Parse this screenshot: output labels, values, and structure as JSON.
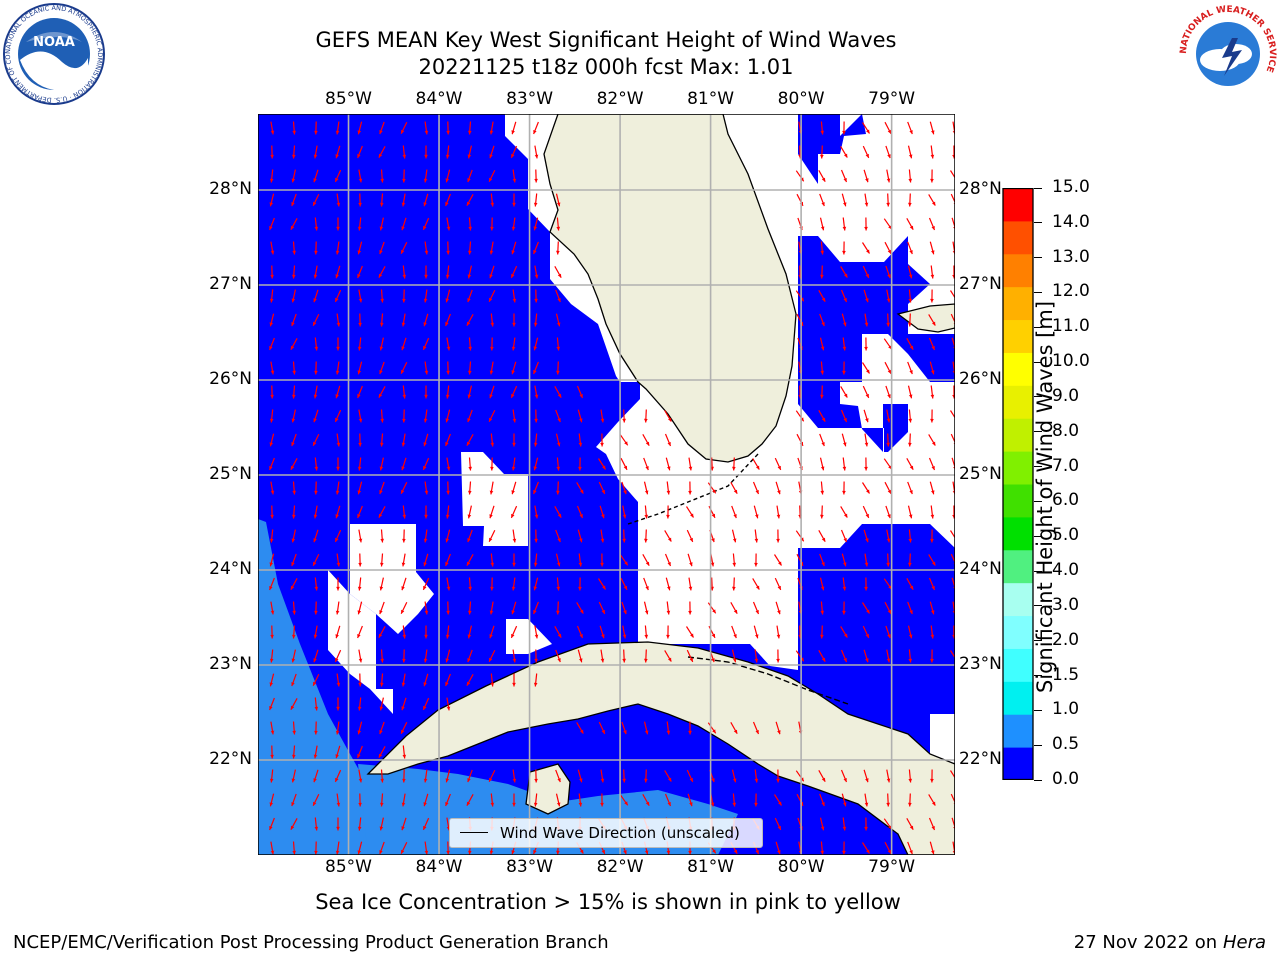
{
  "title": {
    "line1": "GEFS MEAN Key West Significant Height of Wind Waves",
    "line2": "20221125 t18z 000h fcst   Max: 1.01"
  },
  "map": {
    "lon_labels": [
      "85°W",
      "84°W",
      "83°W",
      "82°W",
      "81°W",
      "80°W",
      "79°W"
    ],
    "lat_labels": [
      "28°N",
      "27°N",
      "26°N",
      "25°N",
      "24°N",
      "23°N",
      "22°N"
    ],
    "lon_values": [
      -85,
      -84,
      -83,
      -82,
      -81,
      -80,
      -79
    ],
    "lat_values": [
      28,
      27,
      26,
      25,
      24,
      23,
      22
    ],
    "extent": {
      "lon_min": -86.0,
      "lon_max": -78.3,
      "lat_min": 21.0,
      "lat_max": 28.8
    },
    "gridlines": true,
    "field_colors": {
      "wave_low": "#0000ff",
      "wave_mid": "#2d8cf0",
      "land": "#efefdc",
      "arrow": "#ff0000"
    },
    "legend": {
      "label": "Wind Wave Direction (unscaled)",
      "placement": "lower-center"
    }
  },
  "colorbar": {
    "label": "Significant Height of Wind Waves [m]",
    "ticks": [
      "0.0",
      "0.5",
      "1.0",
      "1.5",
      "2.0",
      "3.0",
      "4.0",
      "5.0",
      "6.0",
      "7.0",
      "8.0",
      "9.0",
      "10.0",
      "11.0",
      "12.0",
      "13.0",
      "14.0",
      "15.0"
    ],
    "colors": [
      "#0000ff",
      "#1e90ff",
      "#00f0f0",
      "#40ffff",
      "#80ffff",
      "#a8fff0",
      "#50f080",
      "#00e000",
      "#40e000",
      "#80f000",
      "#c0f000",
      "#e8f000",
      "#ffff00",
      "#ffd000",
      "#ffb000",
      "#ff8000",
      "#ff5000",
      "#ff0000"
    ]
  },
  "subtitle": "Sea Ice Concentration > 15% is shown in pink to yellow",
  "footer": {
    "left": "NCEP/EMC/Verification Post Processing Product Generation Branch",
    "right_prefix": "27 Nov 2022 on",
    "right_machine": "Hera"
  },
  "logos": {
    "noaa": {
      "text": "NOAA",
      "ring": "NATIONAL OCEANIC AND ATMOSPHERIC ADMINISTRATION · U.S. DEPARTMENT OF COMMERCE"
    },
    "nws": {
      "ring": "NATIONAL WEATHER SERVICE"
    }
  }
}
